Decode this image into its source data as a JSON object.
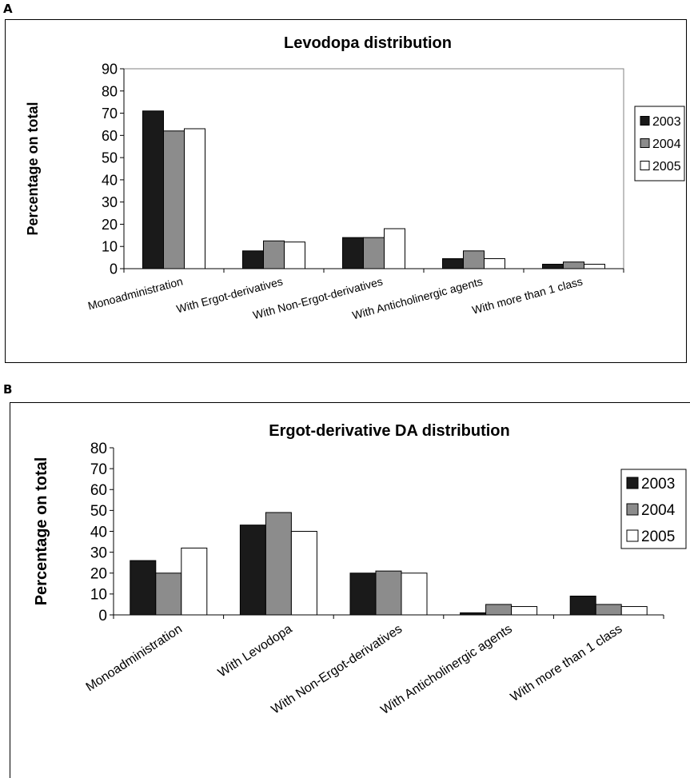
{
  "panels": [
    "A",
    "B"
  ],
  "chart_data": [
    {
      "type": "bar",
      "title": "Levodopa distribution",
      "ylabel": "Percentage on total",
      "xlabel": "",
      "ylim": [
        0,
        90
      ],
      "yticks": [
        0,
        10,
        20,
        30,
        40,
        50,
        60,
        70,
        80,
        90
      ],
      "categories": [
        "Monoadministration",
        "With Ergot-derivatives",
        "With Non-Ergot-derivatives",
        "With Anticholinergic agents",
        "With more than 1 class"
      ],
      "series": [
        {
          "name": "2003",
          "color": "#1a1a1a",
          "values": [
            71,
            8,
            14,
            4.5,
            2
          ]
        },
        {
          "name": "2004",
          "color": "#8c8c8c",
          "values": [
            62,
            12.5,
            14,
            8,
            3
          ]
        },
        {
          "name": "2005",
          "color": "#ffffff",
          "values": [
            63,
            12,
            18,
            4.5,
            2
          ]
        }
      ],
      "grid": false,
      "legend": "right"
    },
    {
      "type": "bar",
      "title": "Ergot-derivative DA distribution",
      "ylabel": "Percentage on total",
      "xlabel": "",
      "ylim": [
        0,
        80
      ],
      "yticks": [
        0,
        10,
        20,
        30,
        40,
        50,
        60,
        70,
        80
      ],
      "categories": [
        "Monoadministration",
        "With Levodopa",
        "With Non-Ergot-derivatives",
        "With Anticholinergic agents",
        "With more than 1 class"
      ],
      "series": [
        {
          "name": "2003",
          "color": "#1a1a1a",
          "values": [
            26,
            43,
            20,
            1,
            9
          ]
        },
        {
          "name": "2004",
          "color": "#8c8c8c",
          "values": [
            20,
            49,
            21,
            5,
            5
          ]
        },
        {
          "name": "2005",
          "color": "#ffffff",
          "values": [
            32,
            40,
            20,
            4,
            4
          ]
        }
      ],
      "grid": false,
      "legend": "right"
    }
  ]
}
